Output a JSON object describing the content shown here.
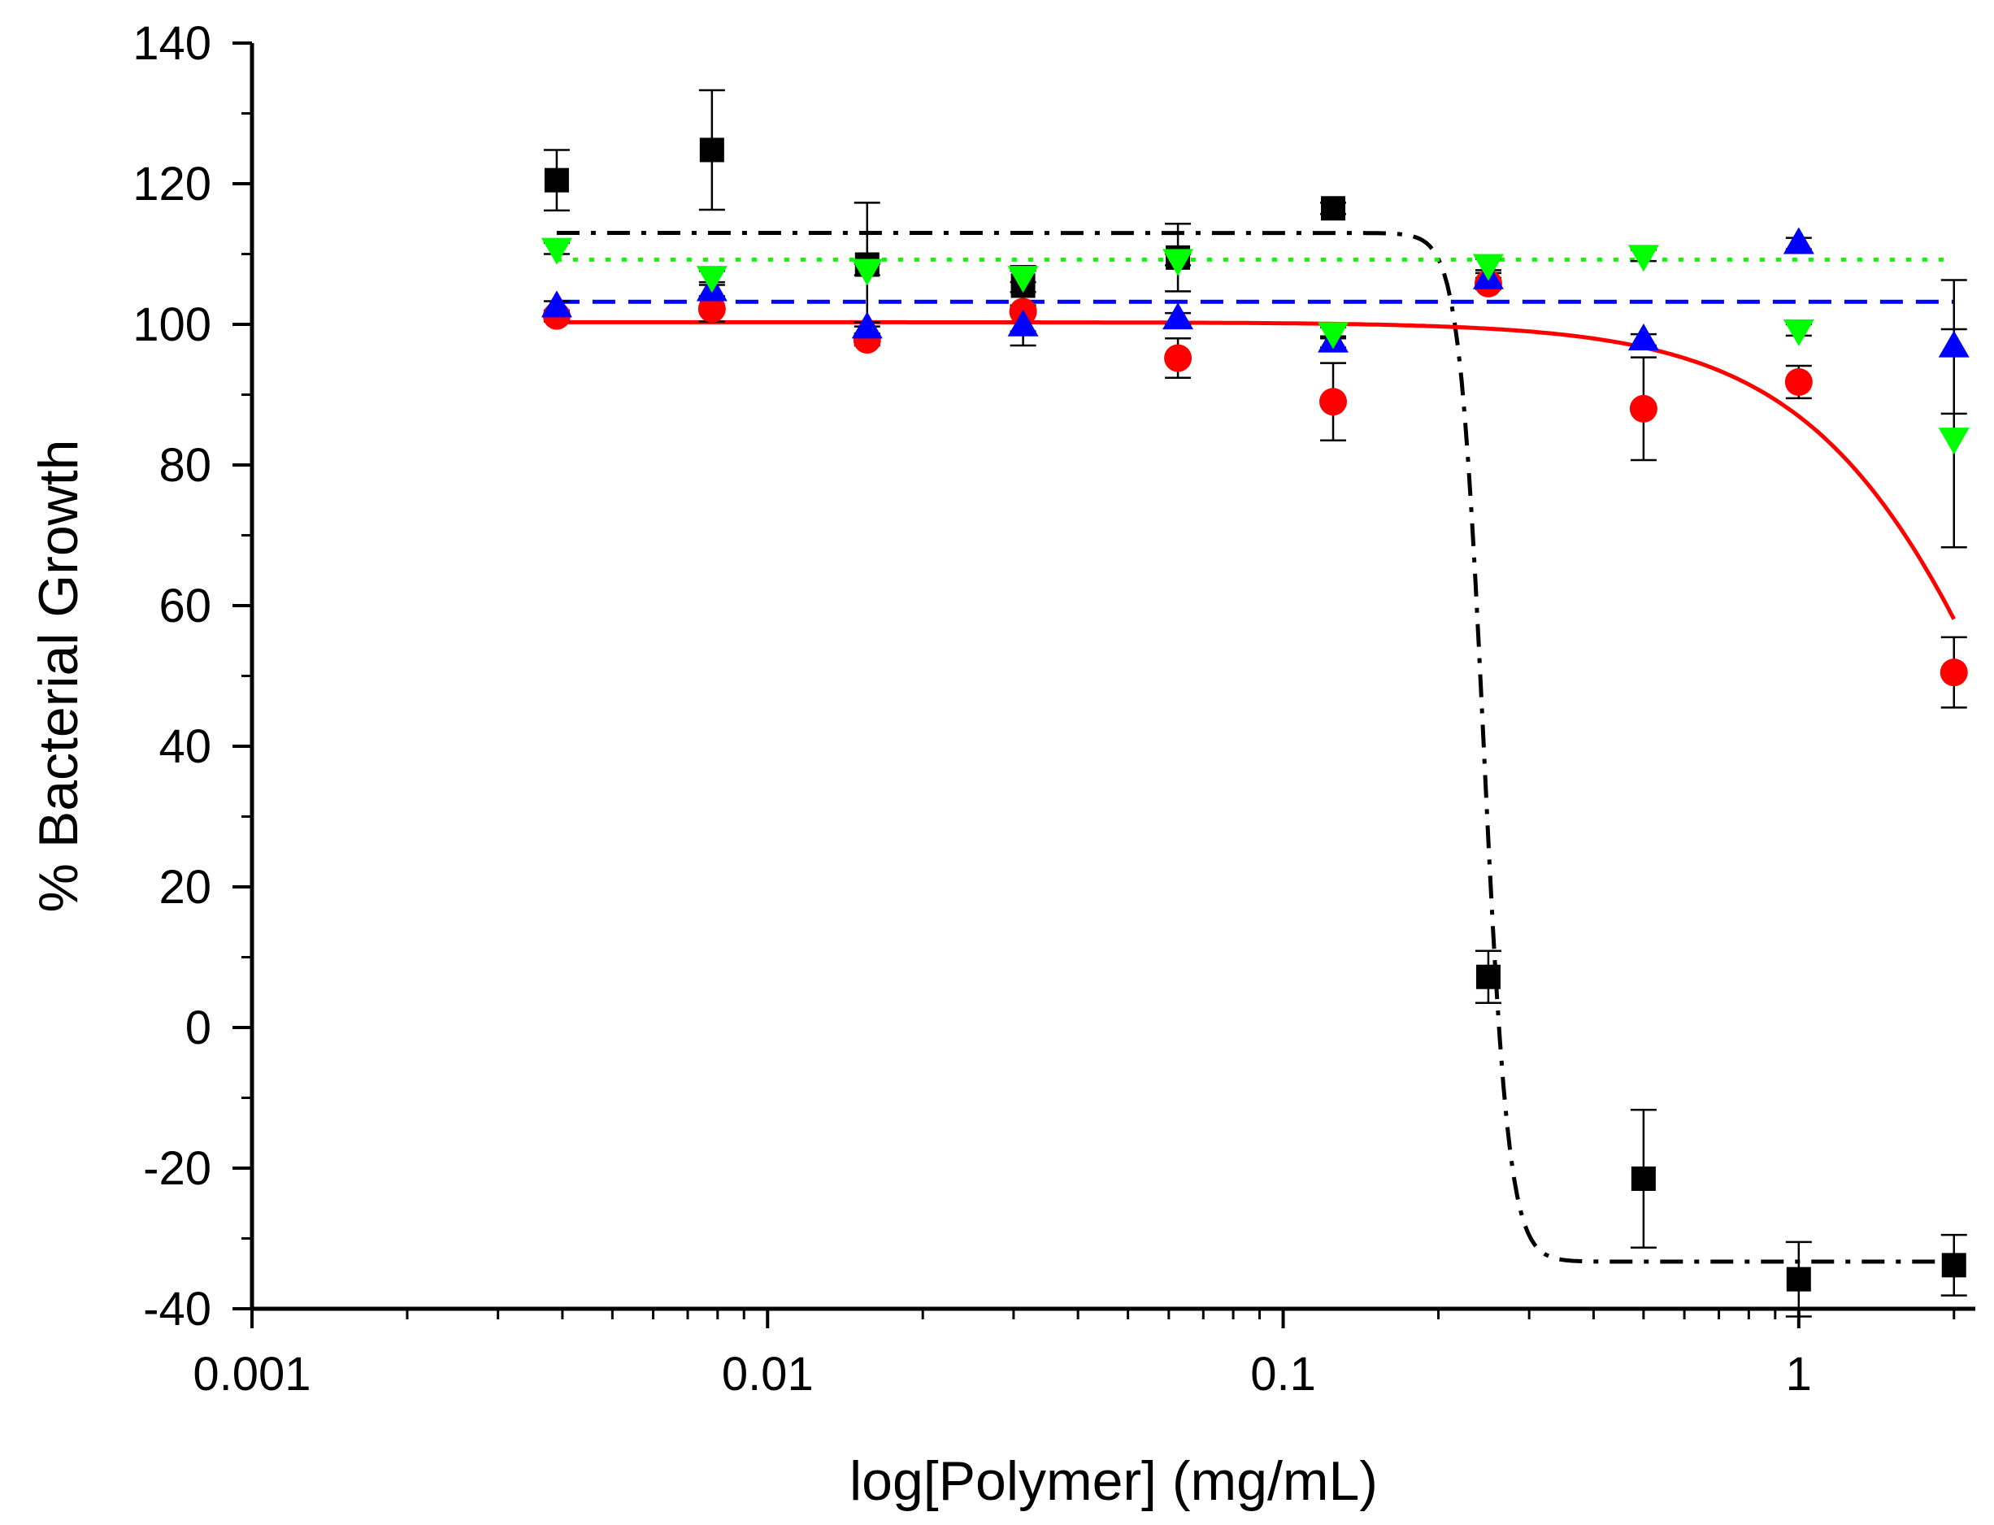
{
  "chart_data": {
    "type": "scatter",
    "title": "",
    "xlabel": "log[Polymer] (mg/mL)",
    "ylabel": "% Bacterial Growth",
    "x_scale": "log",
    "xlim": [
      0.001,
      2.2
    ],
    "ylim": [
      -40,
      140
    ],
    "x_ticks": [
      {
        "value": 0.001,
        "label": "0.001"
      },
      {
        "value": 0.01,
        "label": "0.01"
      },
      {
        "value": 0.1,
        "label": "0.1"
      },
      {
        "value": 1,
        "label": "1"
      }
    ],
    "y_ticks": [
      {
        "value": -40,
        "label": "-40"
      },
      {
        "value": -20,
        "label": "-20"
      },
      {
        "value": 0,
        "label": "0"
      },
      {
        "value": 20,
        "label": "20"
      },
      {
        "value": 40,
        "label": "40"
      },
      {
        "value": 60,
        "label": "60"
      },
      {
        "value": 80,
        "label": "80"
      },
      {
        "value": 100,
        "label": "100"
      },
      {
        "value": 120,
        "label": "120"
      },
      {
        "value": 140,
        "label": "140"
      }
    ],
    "grid": false,
    "legend": "none",
    "x": [
      0.0039,
      0.0078,
      0.0156,
      0.0313,
      0.0625,
      0.125,
      0.25,
      0.5,
      1,
      2
    ],
    "series": [
      {
        "color": "#000000",
        "marker": "square",
        "line_style": "dash-dot",
        "values": [
          120.5,
          124.8,
          108.5,
          105.5,
          109.5,
          116.5,
          7.2,
          -21.5,
          -35.8,
          -33.8
        ],
        "errors": [
          4.3,
          8.5,
          8.8,
          2.8,
          4.8,
          0.8,
          3.7,
          9.8,
          5.3,
          4.3
        ],
        "fit": {
          "model": "sigmoid",
          "top": 113.0,
          "bottom": -33.3,
          "x50": 0.245,
          "slope": 18
        }
      },
      {
        "color": "#ff0000",
        "marker": "circle",
        "line_style": "solid",
        "values": [
          101.2,
          102.2,
          97.8,
          101.8,
          95.2,
          89.0,
          105.8,
          88.0,
          91.8,
          50.5
        ],
        "errors": [
          0.8,
          1.8,
          0.8,
          2.8,
          2.8,
          5.5,
          0.8,
          7.3,
          2.3,
          5.0
        ],
        "fit": {
          "model": "sigmoid",
          "top": 100.3,
          "bottom": -50,
          "x50": 3.2,
          "slope": 2.0
        }
      },
      {
        "color": "#0000ff",
        "marker": "triangle-up",
        "line_style": "dashed",
        "values": [
          102.5,
          104.8,
          99.5,
          99.8,
          100.8,
          97.5,
          106.5,
          97.8,
          111.5,
          96.8
        ],
        "errors": [
          0.8,
          0.8,
          0.8,
          2.8,
          0.8,
          0.8,
          0.8,
          0.8,
          0.8,
          9.5
        ],
        "fit": {
          "model": "constant",
          "value": 103.2
        }
      },
      {
        "color": "#00ff00",
        "marker": "triangle-down",
        "line_style": "dotted",
        "values": [
          110.8,
          106.8,
          107.8,
          106.8,
          109.2,
          98.8,
          108.5,
          109.8,
          99.2,
          83.8
        ],
        "errors": [
          0.8,
          0.8,
          0.8,
          0.8,
          0.8,
          0.8,
          0.8,
          0.8,
          0.8,
          15.5
        ],
        "fit": {
          "model": "constant",
          "value": 109.2
        }
      }
    ]
  }
}
